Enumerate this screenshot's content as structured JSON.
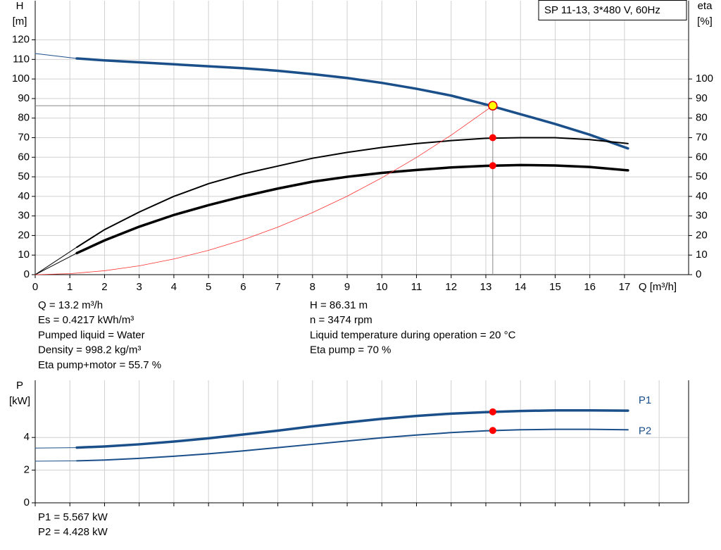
{
  "chart_data": [
    {
      "type": "line",
      "title": "SP 11-13, 3*480 V, 60Hz",
      "ylabel": "H",
      "yunit": "[m]",
      "y2label": "eta",
      "y2unit": "[%]",
      "xlabel": "Q [m³/h]",
      "xlim": [
        0,
        18.85
      ],
      "xticks": [
        0,
        1,
        2,
        3,
        4,
        5,
        6,
        7,
        8,
        9,
        10,
        11,
        12,
        13,
        14,
        15,
        16,
        17
      ],
      "show_xtick_labels": true,
      "ylim": [
        0,
        140
      ],
      "yticks": [
        0,
        10,
        20,
        30,
        40,
        50,
        60,
        70,
        80,
        90,
        100,
        110,
        120
      ],
      "y2lim": [
        0,
        140
      ],
      "y2ticks": [
        0,
        10,
        20,
        30,
        40,
        50,
        60,
        70,
        80,
        90,
        100
      ],
      "grid": true,
      "series": [
        {
          "color": "#1a4f8a",
          "width": 1,
          "x": [
            0,
            1.2
          ],
          "values": [
            113,
            110.5
          ]
        },
        {
          "color": "#1a4f8a",
          "width": 3.5,
          "x": [
            1.2,
            2,
            3,
            4,
            5,
            6,
            7,
            8,
            9,
            10,
            11,
            12,
            13,
            14,
            15,
            16,
            17.1
          ],
          "values": [
            110.5,
            109.5,
            108.5,
            107.5,
            106.5,
            105.5,
            104.2,
            102.5,
            100.5,
            98,
            95,
            91.5,
            87,
            82,
            77,
            71.5,
            64.5
          ]
        },
        {
          "color": "#000000",
          "width": 1,
          "axis": "y2",
          "x": [
            0,
            1.2
          ],
          "values": [
            0,
            14
          ]
        },
        {
          "color": "#000000",
          "width": 2,
          "axis": "y2",
          "x": [
            1.2,
            2,
            3,
            4,
            5,
            6,
            7,
            8,
            9,
            10,
            11,
            12,
            13,
            14,
            15,
            16,
            17.1
          ],
          "values": [
            14,
            23,
            32,
            40,
            46.5,
            51.5,
            55.5,
            59.5,
            62.5,
            65,
            67,
            68.5,
            69.7,
            70,
            70,
            69,
            67
          ]
        },
        {
          "color": "#000000",
          "width": 1,
          "axis": "y2",
          "x": [
            0,
            1.2
          ],
          "values": [
            0,
            11
          ]
        },
        {
          "color": "#000000",
          "width": 3.5,
          "axis": "y2",
          "x": [
            1.2,
            2,
            3,
            4,
            5,
            6,
            7,
            8,
            9,
            10,
            11,
            12,
            13,
            14,
            15,
            16,
            17.1
          ],
          "values": [
            11,
            17.5,
            24.5,
            30.5,
            35.5,
            40,
            44,
            47.5,
            50,
            52,
            53.5,
            54.8,
            55.6,
            56,
            55.8,
            55,
            53.3
          ]
        },
        {
          "color": "#ff3030",
          "width": 0.8,
          "x": [
            0,
            1,
            2,
            3,
            4,
            5,
            6,
            7,
            8,
            9,
            10,
            11,
            12,
            13.2
          ],
          "values": [
            0,
            0.5,
            2,
            4.5,
            8,
            12.4,
            17.8,
            24.3,
            31.7,
            40.1,
            49.5,
            59.9,
            71.3,
            86.31
          ]
        }
      ],
      "points": [
        {
          "x": 13.2,
          "y": 86.31,
          "color": "#ffff00",
          "stroke": "#e00000",
          "guide": true
        },
        {
          "x": 13.2,
          "y": 70,
          "color": "#ff0000",
          "axis": "y2"
        },
        {
          "x": 13.2,
          "y": 55.7,
          "color": "#ff0000",
          "axis": "y2"
        }
      ],
      "annotations": [
        [
          "Q = 13.2 m³/h",
          "Es = 0.4217 kWh/m³",
          "Pumped liquid = Water",
          "Density = 998.2 kg/m³",
          "Eta pump+motor = 55.7 %"
        ],
        [
          "H = 86.31 m",
          "n = 3474 rpm",
          "Liquid temperature during operation = 20 °C",
          "Eta pump = 70 %"
        ]
      ]
    },
    {
      "type": "line",
      "ylabel": "P",
      "yunit": "[kW]",
      "xlim": [
        0,
        18.85
      ],
      "xticks": [
        0,
        1,
        2,
        3,
        4,
        5,
        6,
        7,
        8,
        9,
        10,
        11,
        12,
        13,
        14,
        15,
        16,
        17,
        18
      ],
      "show_xtick_labels": false,
      "ylim": [
        0,
        7.5
      ],
      "yticks": [
        0,
        2,
        4
      ],
      "grid": true,
      "series": [
        {
          "color": "#1a4f8a",
          "width": 1,
          "x": [
            0,
            1.2
          ],
          "values": [
            3.35,
            3.38
          ]
        },
        {
          "name": "P1",
          "color": "#1a4f8a",
          "width": 3.5,
          "x": [
            1.2,
            2,
            3,
            4,
            5,
            6,
            7,
            8,
            9,
            10,
            11,
            12,
            13,
            14,
            15,
            16,
            17.1
          ],
          "values": [
            3.38,
            3.45,
            3.58,
            3.75,
            3.95,
            4.18,
            4.42,
            4.68,
            4.92,
            5.14,
            5.32,
            5.46,
            5.55,
            5.62,
            5.66,
            5.66,
            5.64
          ]
        },
        {
          "color": "#1a4f8a",
          "width": 1,
          "x": [
            0,
            1.2
          ],
          "values": [
            2.55,
            2.57
          ]
        },
        {
          "name": "P2",
          "color": "#1a4f8a",
          "width": 2,
          "x": [
            1.2,
            2,
            3,
            4,
            5,
            6,
            7,
            8,
            9,
            10,
            11,
            12,
            13,
            14,
            15,
            16,
            17.1
          ],
          "values": [
            2.57,
            2.62,
            2.72,
            2.85,
            3.0,
            3.18,
            3.38,
            3.58,
            3.78,
            3.98,
            4.15,
            4.3,
            4.41,
            4.47,
            4.5,
            4.5,
            4.47
          ]
        }
      ],
      "points": [
        {
          "x": 13.2,
          "y": 5.567,
          "color": "#ff0000"
        },
        {
          "x": 13.2,
          "y": 4.428,
          "color": "#ff0000"
        }
      ],
      "annotations": [
        [
          "P1 = 5.567 kW",
          "P2 = 4.428 kW"
        ]
      ]
    }
  ]
}
